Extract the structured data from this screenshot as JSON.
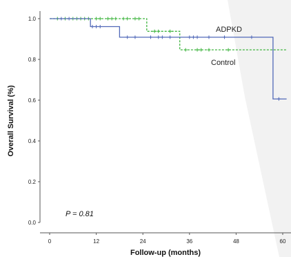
{
  "chart_data": {
    "type": "line",
    "xlabel": "Follow-up (months)",
    "ylabel": "Overall Survival (%)",
    "xticks": [
      0,
      12,
      24,
      36,
      48,
      60
    ],
    "yticks": [
      0.0,
      0.2,
      0.4,
      0.6,
      0.8,
      1.0
    ],
    "xtick_labels": [
      "0",
      "12",
      "24",
      "36",
      "48",
      "60"
    ],
    "ytick_labels": [
      "0.0",
      "0.2",
      "0.4",
      "0.6",
      "0.8",
      "1.0"
    ],
    "xlim": [
      -3,
      61
    ],
    "ylim": [
      -0.02,
      1.05
    ],
    "annotation": "P = 0.81",
    "grid": false,
    "series": [
      {
        "name": "ADPKD",
        "color": "#5068b8",
        "line_style": "solid",
        "marker": "plus",
        "step_points": [
          [
            0,
            1.0
          ],
          [
            10.5,
            1.0
          ],
          [
            10.5,
            0.961
          ],
          [
            18,
            0.961
          ],
          [
            18,
            0.909
          ],
          [
            57.5,
            0.909
          ],
          [
            57.5,
            0.606
          ],
          [
            61,
            0.606
          ]
        ],
        "censor_times": [
          3,
          5,
          11,
          12,
          13,
          20,
          22,
          26,
          28,
          29,
          31,
          36,
          37,
          38,
          41,
          45,
          52,
          59
        ]
      },
      {
        "name": "Control",
        "color": "#3db43d",
        "line_style": "dashed",
        "marker": "plus",
        "step_points": [
          [
            0,
            1.0
          ],
          [
            25,
            1.0
          ],
          [
            25,
            0.938
          ],
          [
            33.5,
            0.938
          ],
          [
            33.5,
            0.847
          ],
          [
            61,
            0.847
          ]
        ],
        "censor_times": [
          2,
          4,
          6,
          7,
          8,
          9,
          10,
          12,
          13,
          15,
          16,
          17,
          19,
          20,
          22,
          23,
          27,
          28,
          31,
          35,
          38,
          39,
          41,
          46
        ]
      }
    ]
  }
}
